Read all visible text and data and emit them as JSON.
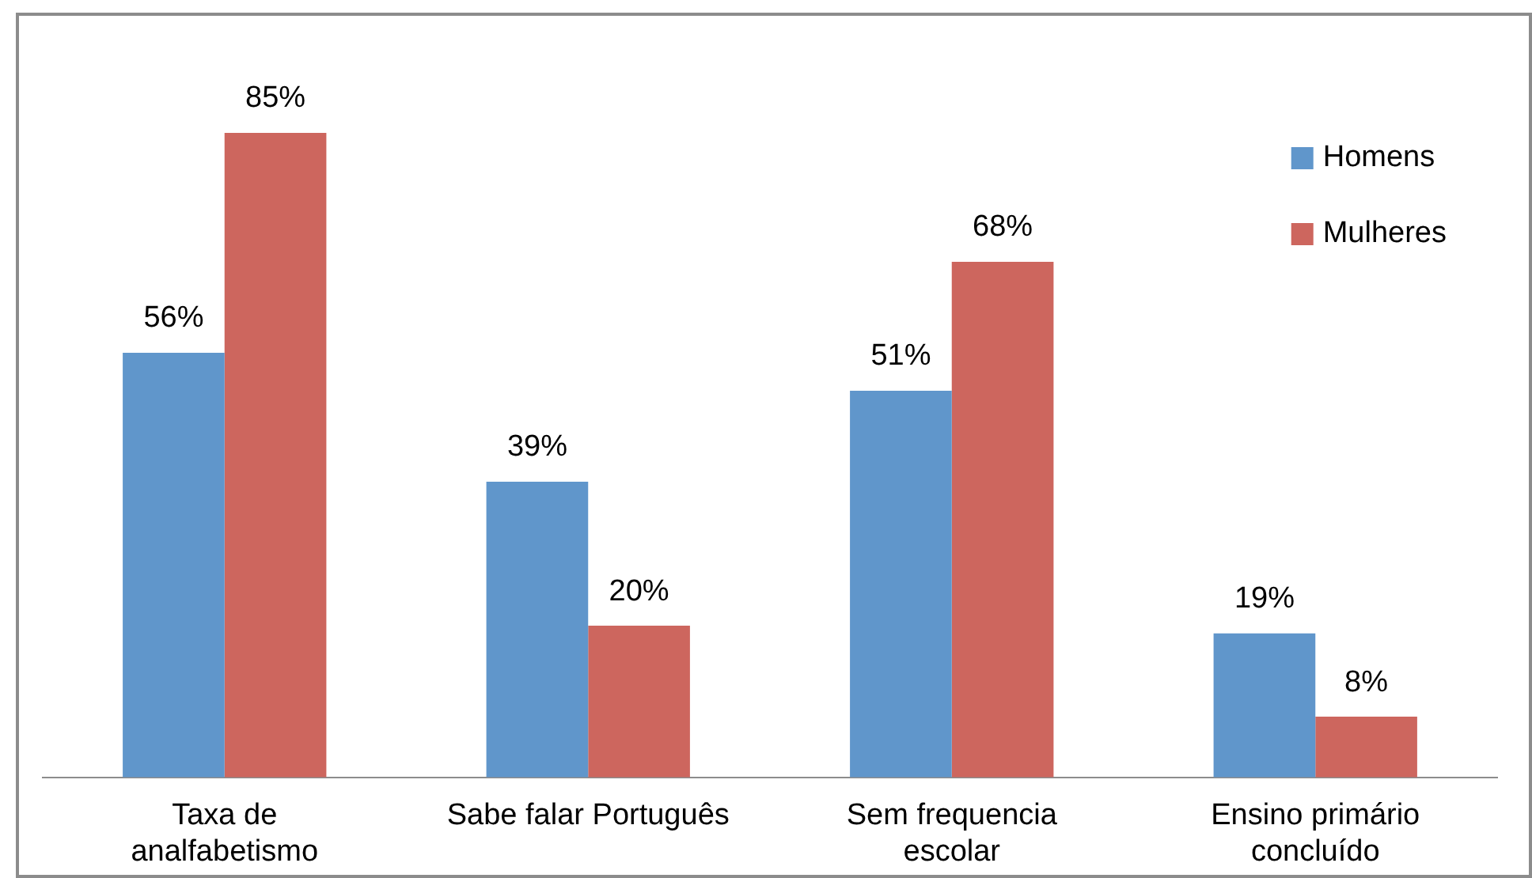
{
  "chart_data": {
    "type": "bar",
    "categories": [
      "Taxa de analfabetismo",
      "Sabe falar Português",
      "Sem frequencia escolar",
      "Ensino primário concluído"
    ],
    "series": [
      {
        "name": "Homens",
        "color": "#6096cb",
        "values": [
          56,
          39,
          51,
          19
        ],
        "value_labels": [
          "56%",
          "39%",
          "51%",
          "19%"
        ]
      },
      {
        "name": "Mulheres",
        "color": "#cd665e",
        "values": [
          85,
          20,
          68,
          8
        ],
        "value_labels": [
          "85%",
          "20%",
          "68%",
          "8%"
        ]
      }
    ],
    "tick_labels": "x",
    "legend": "top right",
    "grid": false
  }
}
